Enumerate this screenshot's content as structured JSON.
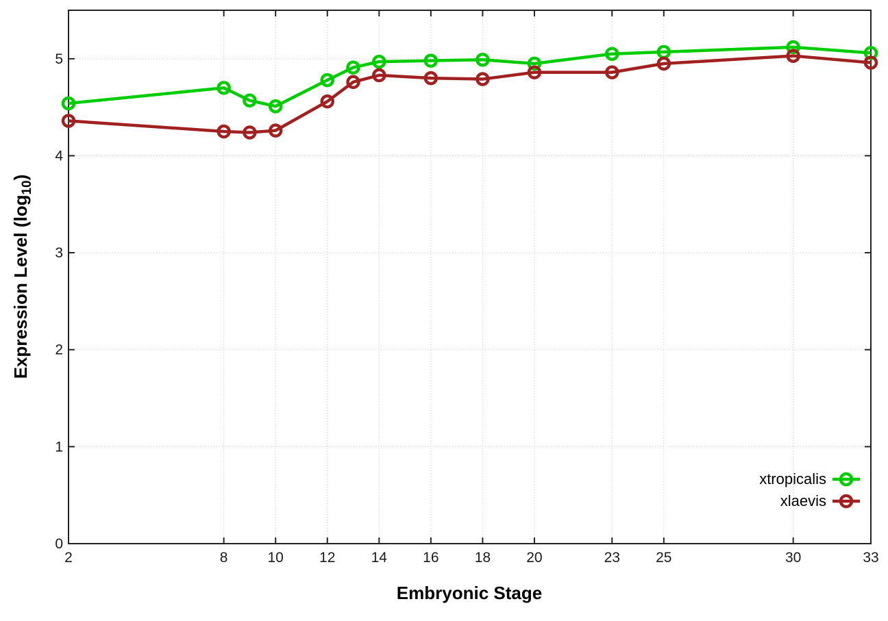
{
  "chart_data": {
    "type": "line",
    "title": "",
    "xlabel": "Embryonic Stage",
    "ylabel": "Expression Level (log10)",
    "ylabel_parts": {
      "pre": "Expression Level (log",
      "sub": "10",
      "post": ")"
    },
    "xlim": [
      2,
      33
    ],
    "ylim": [
      0,
      5.5
    ],
    "x_ticks": [
      2,
      8,
      10,
      12,
      14,
      16,
      18,
      20,
      23,
      25,
      30,
      33
    ],
    "y_ticks": [
      0,
      1,
      2,
      3,
      4,
      5
    ],
    "grid": true,
    "legend_position": "inside-bottom-right",
    "x": [
      2,
      8,
      9,
      10,
      12,
      13,
      14,
      16,
      18,
      20,
      23,
      25,
      30,
      33
    ],
    "series": [
      {
        "name": "xtropicalis",
        "color": "#00cc00",
        "marker": "open-circle",
        "values": [
          4.54,
          4.7,
          4.57,
          4.51,
          4.78,
          4.91,
          4.97,
          4.98,
          4.99,
          4.95,
          5.05,
          5.07,
          5.12,
          5.06
        ]
      },
      {
        "name": "xlaevis",
        "color": "#a12020",
        "marker": "open-circle",
        "values": [
          4.36,
          4.25,
          4.24,
          4.26,
          4.56,
          4.76,
          4.83,
          4.8,
          4.79,
          4.86,
          4.86,
          4.95,
          5.03,
          4.96
        ]
      }
    ],
    "style": {
      "background": "#ffffff",
      "grid_color": "#c4c4c4",
      "axis_color": "#222222",
      "tick_label_color": "#1a1a1a",
      "line_width": 4.5,
      "marker_radius": 8,
      "marker_stroke": 4.5,
      "tick_font_size": 21
    }
  }
}
